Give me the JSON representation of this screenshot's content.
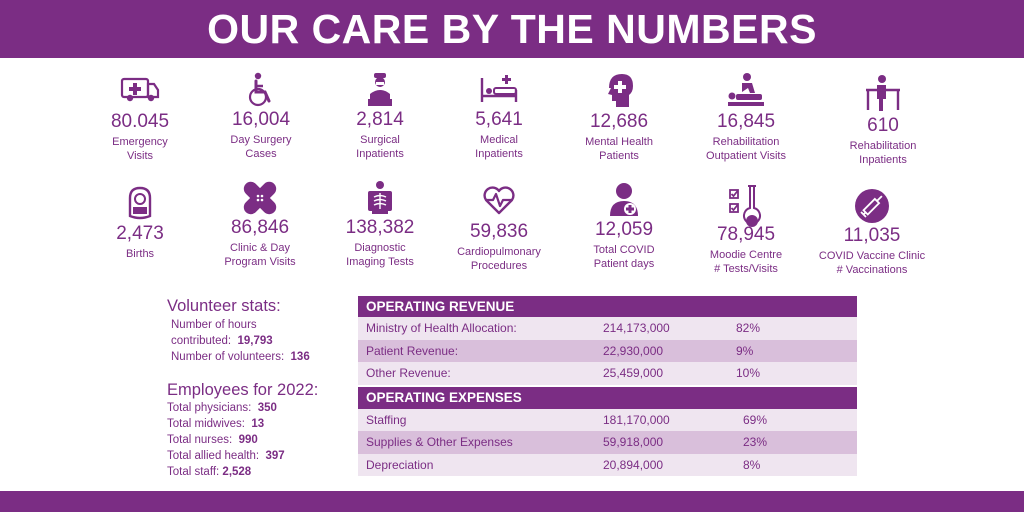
{
  "title": "OUR CARE BY THE NUMBERS",
  "colors": {
    "brand": "#7b2d84",
    "row_light": "#efe5f0",
    "row_dark": "#d9bfdb"
  },
  "stats_row1": [
    {
      "icon": "ambulance-icon",
      "value": "80.045",
      "label_lines": [
        "Emergency",
        "Visits"
      ]
    },
    {
      "icon": "wheelchair-icon",
      "value": "16,004",
      "label_lines": [
        "Day Surgery",
        "Cases"
      ]
    },
    {
      "icon": "surgeon-icon",
      "value": "2,814",
      "label_lines": [
        "Surgical",
        "Inpatients"
      ]
    },
    {
      "icon": "hospital-bed-icon",
      "value": "5,641",
      "label_lines": [
        "Medical",
        "Inpatients"
      ]
    },
    {
      "icon": "head-cross-icon",
      "value": "12,686",
      "label_lines": [
        "Mental Health",
        "Patients"
      ]
    },
    {
      "icon": "massage-therapy-icon",
      "value": "16,845",
      "label_lines": [
        "Rehabilitation",
        "Outpatient Visits"
      ]
    },
    {
      "icon": "walker-icon",
      "value": "610",
      "label_lines": [
        "Rehabilitation",
        "Inpatients"
      ]
    }
  ],
  "stats_row2": [
    {
      "icon": "baby-icon",
      "value": "2,473",
      "label_lines": [
        "Births"
      ]
    },
    {
      "icon": "bandage-icon",
      "value": "86,846",
      "label_lines": [
        "Clinic & Day",
        "Program Visits"
      ]
    },
    {
      "icon": "xray-icon",
      "value": "138,382",
      "label_lines": [
        "Diagnostic",
        "Imaging Tests"
      ]
    },
    {
      "icon": "heart-pulse-icon",
      "value": "59,836",
      "label_lines": [
        "Cardiopulmonary",
        "Procedures"
      ]
    },
    {
      "icon": "patient-cross-icon",
      "value": "12,059",
      "label_lines": [
        "Total COVID",
        "Patient days"
      ]
    },
    {
      "icon": "test-tube-checklist-icon",
      "value": "78,945",
      "label_lines": [
        "Moodie Centre",
        "# Tests/Visits"
      ]
    },
    {
      "icon": "syringe-icon",
      "value": "11,035",
      "label_lines": [
        "COVID Vaccine Clinic",
        "# Vaccinations"
      ]
    }
  ],
  "volunteer": {
    "title": "Volunteer stats:",
    "hours_label_1": "Number of hours",
    "hours_label_2": "contributed:",
    "hours_value": "19,793",
    "volunteers_label": "Number of volunteers:",
    "volunteers_value": "136"
  },
  "employees": {
    "title": "Employees for 2022:",
    "rows": [
      {
        "label": "Total physicians:",
        "value": "350"
      },
      {
        "label": "Total midwives:",
        "value": "13"
      },
      {
        "label": "Total nurses:",
        "value": "990"
      },
      {
        "label": "Total allied health:",
        "value": "397"
      },
      {
        "label": "Total staff:",
        "value": "2,528"
      }
    ]
  },
  "operating_revenue": {
    "title": "OPERATING REVENUE",
    "rows": [
      {
        "name": "Ministry of Health Allocation:",
        "amount": "214,173,000",
        "pct": "82%"
      },
      {
        "name": "Patient Revenue:",
        "amount": "22,930,000",
        "pct": "9%"
      },
      {
        "name": "Other Revenue:",
        "amount": "25,459,000",
        "pct": "10%"
      }
    ]
  },
  "operating_expenses": {
    "title": "OPERATING EXPENSES",
    "rows": [
      {
        "name": "Staffing",
        "amount": "181,170,000",
        "pct": "69%"
      },
      {
        "name": "Supplies & Other Expenses",
        "amount": "59,918,000",
        "pct": "23%"
      },
      {
        "name": "Depreciation",
        "amount": "20,894,000",
        "pct": "8%"
      }
    ]
  }
}
